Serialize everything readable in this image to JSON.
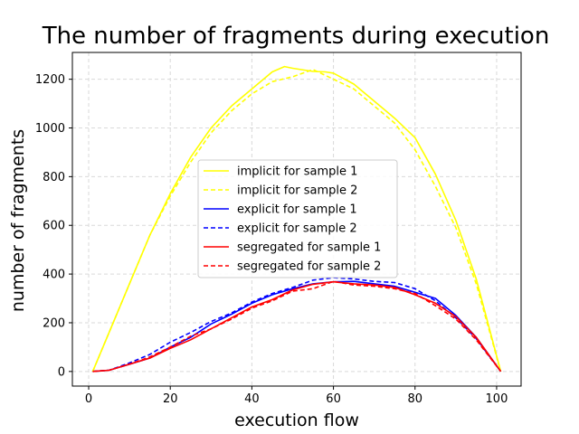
{
  "chart_data": {
    "type": "line",
    "title": "The number of fragments during execution",
    "xlabel": "execution flow",
    "ylabel": "number of fragments",
    "xlim": [
      -4,
      106
    ],
    "ylim": [
      -60,
      1310
    ],
    "xticks": [
      0,
      20,
      40,
      60,
      80,
      100
    ],
    "yticks": [
      0,
      200,
      400,
      600,
      800,
      1000,
      1200
    ],
    "grid": true,
    "legend_position": "center",
    "series": [
      {
        "name": "implicit for sample 1",
        "color": "#ffff00",
        "dash": "solid",
        "points": [
          [
            1,
            0
          ],
          [
            5,
            160
          ],
          [
            10,
            360
          ],
          [
            15,
            560
          ],
          [
            20,
            730
          ],
          [
            25,
            880
          ],
          [
            30,
            1000
          ],
          [
            35,
            1090
          ],
          [
            40,
            1160
          ],
          [
            45,
            1230
          ],
          [
            48,
            1252
          ],
          [
            50,
            1245
          ],
          [
            55,
            1232
          ],
          [
            58,
            1230
          ],
          [
            60,
            1225
          ],
          [
            65,
            1180
          ],
          [
            70,
            1110
          ],
          [
            75,
            1040
          ],
          [
            80,
            960
          ],
          [
            85,
            810
          ],
          [
            90,
            620
          ],
          [
            95,
            380
          ],
          [
            101,
            0
          ]
        ]
      },
      {
        "name": "implicit for sample 2",
        "color": "#ffff00",
        "dash": "dashed",
        "points": [
          [
            1,
            0
          ],
          [
            5,
            160
          ],
          [
            10,
            360
          ],
          [
            15,
            560
          ],
          [
            20,
            720
          ],
          [
            25,
            860
          ],
          [
            30,
            980
          ],
          [
            35,
            1070
          ],
          [
            40,
            1140
          ],
          [
            45,
            1190
          ],
          [
            50,
            1210
          ],
          [
            55,
            1240
          ],
          [
            60,
            1200
          ],
          [
            65,
            1160
          ],
          [
            70,
            1090
          ],
          [
            75,
            1020
          ],
          [
            80,
            910
          ],
          [
            85,
            760
          ],
          [
            90,
            590
          ],
          [
            95,
            360
          ],
          [
            101,
            0
          ]
        ]
      },
      {
        "name": "explicit for sample 1",
        "color": "#0000ff",
        "dash": "solid",
        "points": [
          [
            1,
            0
          ],
          [
            5,
            5
          ],
          [
            10,
            30
          ],
          [
            15,
            55
          ],
          [
            20,
            100
          ],
          [
            25,
            140
          ],
          [
            30,
            195
          ],
          [
            35,
            235
          ],
          [
            40,
            280
          ],
          [
            45,
            315
          ],
          [
            50,
            340
          ],
          [
            55,
            360
          ],
          [
            60,
            368
          ],
          [
            65,
            370
          ],
          [
            70,
            360
          ],
          [
            75,
            350
          ],
          [
            80,
            325
          ],
          [
            85,
            300
          ],
          [
            90,
            230
          ],
          [
            95,
            140
          ],
          [
            101,
            0
          ]
        ]
      },
      {
        "name": "explicit for sample 2",
        "color": "#0000ff",
        "dash": "dashed",
        "points": [
          [
            1,
            0
          ],
          [
            5,
            5
          ],
          [
            10,
            35
          ],
          [
            15,
            70
          ],
          [
            20,
            120
          ],
          [
            25,
            160
          ],
          [
            30,
            205
          ],
          [
            35,
            240
          ],
          [
            40,
            285
          ],
          [
            45,
            320
          ],
          [
            50,
            345
          ],
          [
            55,
            375
          ],
          [
            60,
            385
          ],
          [
            65,
            380
          ],
          [
            70,
            370
          ],
          [
            75,
            365
          ],
          [
            80,
            340
          ],
          [
            85,
            290
          ],
          [
            90,
            220
          ],
          [
            95,
            135
          ],
          [
            101,
            0
          ]
        ]
      },
      {
        "name": "segregated for sample 1",
        "color": "#ff0000",
        "dash": "solid",
        "points": [
          [
            1,
            0
          ],
          [
            5,
            5
          ],
          [
            10,
            30
          ],
          [
            15,
            55
          ],
          [
            20,
            95
          ],
          [
            25,
            130
          ],
          [
            30,
            175
          ],
          [
            35,
            220
          ],
          [
            40,
            265
          ],
          [
            45,
            295
          ],
          [
            50,
            335
          ],
          [
            55,
            358
          ],
          [
            60,
            368
          ],
          [
            65,
            360
          ],
          [
            70,
            355
          ],
          [
            75,
            345
          ],
          [
            80,
            315
          ],
          [
            85,
            280
          ],
          [
            90,
            225
          ],
          [
            95,
            140
          ],
          [
            101,
            0
          ]
        ]
      },
      {
        "name": "segregated for sample 2",
        "color": "#ff0000",
        "dash": "dashed",
        "points": [
          [
            1,
            0
          ],
          [
            5,
            5
          ],
          [
            10,
            30
          ],
          [
            15,
            60
          ],
          [
            20,
            100
          ],
          [
            25,
            145
          ],
          [
            30,
            175
          ],
          [
            35,
            215
          ],
          [
            40,
            260
          ],
          [
            45,
            290
          ],
          [
            50,
            330
          ],
          [
            55,
            340
          ],
          [
            60,
            370
          ],
          [
            65,
            355
          ],
          [
            70,
            350
          ],
          [
            75,
            340
          ],
          [
            80,
            320
          ],
          [
            85,
            270
          ],
          [
            90,
            215
          ],
          [
            95,
            130
          ],
          [
            101,
            0
          ]
        ]
      }
    ]
  }
}
